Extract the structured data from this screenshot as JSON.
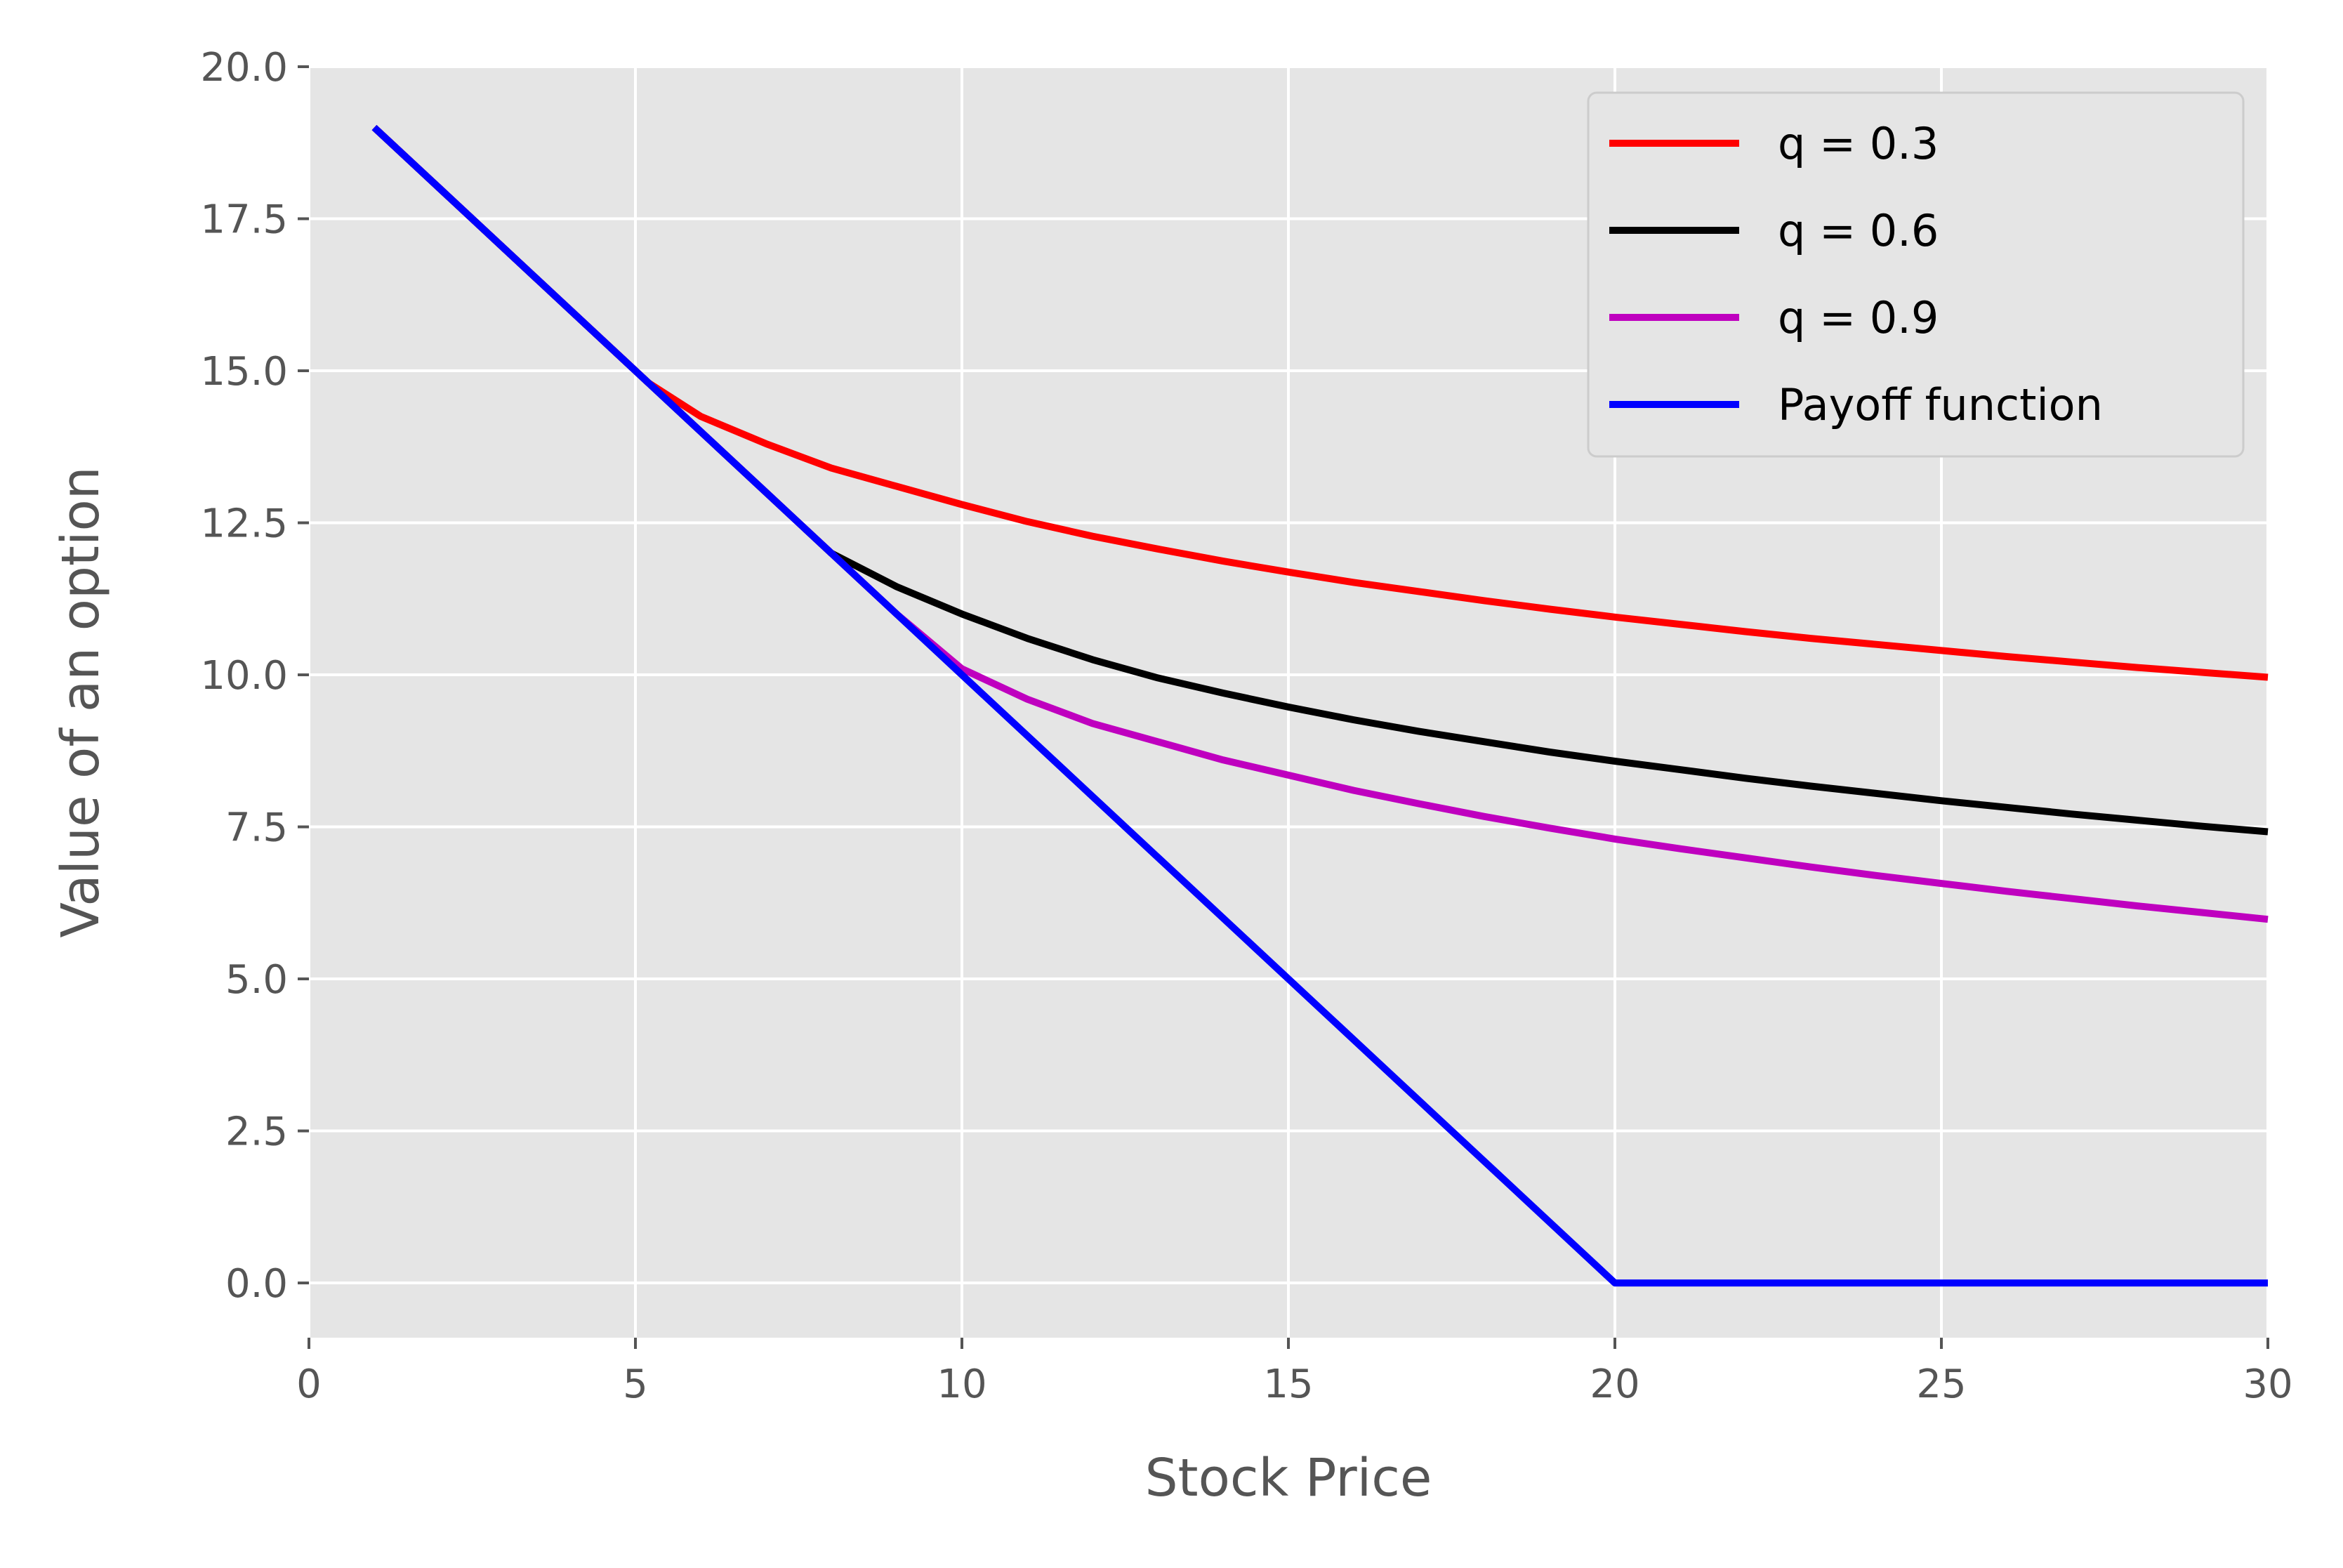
{
  "chart_data": {
    "type": "line",
    "xlabel": "Stock Price",
    "ylabel": "Value of an option",
    "xlim": [
      0,
      30
    ],
    "ylim": [
      -0.9,
      20
    ],
    "xticks": [
      "0",
      "5",
      "10",
      "15",
      "20",
      "25",
      "30"
    ],
    "yticks": [
      "0.0",
      "2.5",
      "5.0",
      "7.5",
      "10.0",
      "12.5",
      "15.0",
      "17.5",
      "20.0"
    ],
    "grid": true,
    "legend_position": "top-right",
    "series": [
      {
        "name": "q = 0.3",
        "color": "#ff0000",
        "x": [
          1,
          2,
          3,
          4,
          5.2,
          6,
          7,
          8,
          9,
          10,
          11,
          12,
          13,
          14,
          15,
          16,
          17,
          18,
          19,
          20,
          21,
          22,
          23,
          24,
          25,
          26,
          27,
          28,
          29,
          30
        ],
        "y": [
          19,
          18,
          17,
          16,
          14.8,
          14.25,
          13.8,
          13.4,
          13.1,
          12.8,
          12.52,
          12.28,
          12.07,
          11.87,
          11.69,
          11.52,
          11.37,
          11.22,
          11.08,
          10.95,
          10.83,
          10.71,
          10.6,
          10.5,
          10.4,
          10.3,
          10.21,
          10.12,
          10.04,
          9.96
        ]
      },
      {
        "name": "q = 0.6",
        "color": "#000000",
        "x": [
          1,
          2,
          3,
          4,
          5,
          6,
          7,
          8,
          9,
          10,
          11,
          12,
          13,
          14,
          15,
          16,
          17,
          18,
          19,
          20,
          21,
          22,
          23,
          24,
          25,
          26,
          27,
          28,
          29,
          30
        ],
        "y": [
          19,
          18,
          17,
          16,
          15,
          14,
          13,
          12,
          11.45,
          11.0,
          10.6,
          10.25,
          9.95,
          9.7,
          9.47,
          9.26,
          9.07,
          8.9,
          8.73,
          8.58,
          8.44,
          8.3,
          8.17,
          8.05,
          7.93,
          7.82,
          7.71,
          7.61,
          7.51,
          7.42
        ]
      },
      {
        "name": "q = 0.9",
        "color": "#bf00bf",
        "x": [
          1,
          2,
          3,
          4,
          5,
          6,
          7,
          8,
          9,
          10,
          11,
          12,
          13,
          14,
          15,
          16,
          17,
          18,
          19,
          20,
          21,
          22,
          23,
          24,
          25,
          26,
          27,
          28,
          29,
          30
        ],
        "y": [
          19,
          18,
          17,
          16,
          15,
          14,
          13,
          12,
          11,
          10.1,
          9.6,
          9.2,
          8.9,
          8.6,
          8.35,
          8.1,
          7.88,
          7.67,
          7.48,
          7.3,
          7.14,
          6.99,
          6.84,
          6.7,
          6.57,
          6.44,
          6.32,
          6.2,
          6.09,
          5.98
        ]
      },
      {
        "name": "Payoff function",
        "color": "#0000ff",
        "x": [
          1,
          20,
          30
        ],
        "y": [
          19,
          0,
          0
        ]
      }
    ]
  }
}
